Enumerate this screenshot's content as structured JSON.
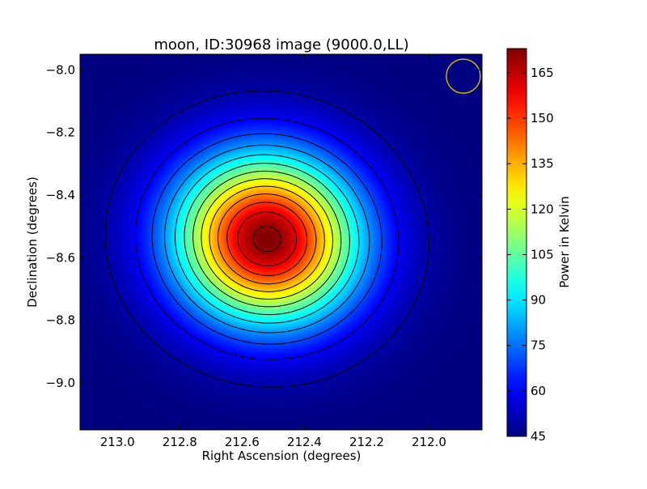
{
  "chart_data": {
    "type": "heatmap",
    "title": "moon, ID:30968 image (9000.0,LL)",
    "xlabel": "Right Ascension (degrees)",
    "ylabel": "Declination (degrees)",
    "xlim": [
      213.12,
      211.83
    ],
    "ylim": [
      -9.15,
      -7.95
    ],
    "x_reversed": true,
    "x_ticks": [
      213.0,
      212.8,
      212.6,
      212.4,
      212.2,
      212.0
    ],
    "x_tick_labels": [
      "213.0",
      "212.8",
      "212.6",
      "212.4",
      "212.2",
      "212.0"
    ],
    "y_ticks": [
      -8.0,
      -8.2,
      -8.4,
      -8.6,
      -8.8,
      -9.0
    ],
    "y_tick_labels": [
      "−8.0",
      "−8.2",
      "−8.4",
      "−8.6",
      "−8.8",
      "−9.0"
    ],
    "colormap": "jet",
    "colorbar": {
      "label": "Power in Kelvin",
      "min": 45,
      "max": 173,
      "ticks": [
        45,
        60,
        75,
        90,
        105,
        120,
        135,
        150,
        165
      ],
      "tick_labels": [
        "45",
        "60",
        "75",
        "90",
        "105",
        "120",
        "135",
        "150",
        "165"
      ]
    },
    "source": {
      "ra": 212.52,
      "dec": -8.54,
      "peak": 173,
      "background": 45
    },
    "contour_levels": [
      50,
      60,
      70,
      80,
      90,
      100,
      110,
      120,
      130,
      140,
      150,
      160,
      170
    ],
    "contour_color": "#000000",
    "beam": {
      "ra": 211.89,
      "dec": -8.02,
      "color": "#c8b400"
    },
    "grid": false
  }
}
